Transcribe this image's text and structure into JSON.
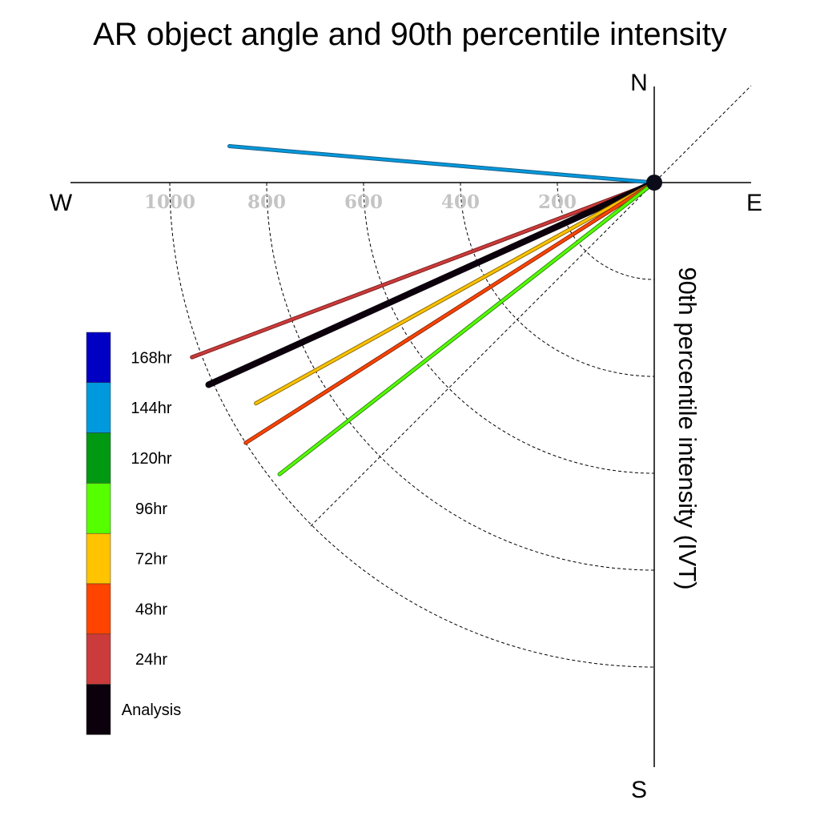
{
  "chart_data": {
    "type": "polar-vector",
    "title": "AR object angle and 90th percentile intensity",
    "ylabel": "90th percentile intensity (IVT)",
    "compass": {
      "north": "N",
      "south": "S",
      "east": "E",
      "west": "W"
    },
    "radial_ticks": [
      "200",
      "400",
      "600",
      "800",
      "1000"
    ],
    "radial_tick_values": [
      200,
      400,
      600,
      800,
      1000
    ],
    "rlim": [
      0,
      1000
    ],
    "grid": true,
    "legend_position": "left",
    "series": [
      {
        "name": "144hr",
        "color": "#0099dd",
        "edge": "#1b5f86",
        "intensity": 880,
        "direction_deg": 274.9
      },
      {
        "name": "24hr",
        "color": "#cc3b3b",
        "edge": "#7a1f1f",
        "intensity": 1020,
        "direction_deg": 249.3
      },
      {
        "name": "Analysis",
        "color": "#0b000b",
        "edge": "#000000",
        "intensity": 1010,
        "direction_deg": 245.6
      },
      {
        "name": "72hr",
        "color": "#ffc300",
        "edge": "#8a6b00",
        "intensity": 940,
        "direction_deg": 241.0
      },
      {
        "name": "48hr",
        "color": "#ff4400",
        "edge": "#8a2a10",
        "intensity": 1000,
        "direction_deg": 237.5
      },
      {
        "name": "96hr",
        "color": "#55ff00",
        "edge": "#2f8a10",
        "intensity": 980,
        "direction_deg": 232.1
      }
    ],
    "legend": [
      {
        "label": "168hr",
        "color": "#0000c4"
      },
      {
        "label": "144hr",
        "color": "#0099dd"
      },
      {
        "label": "120hr",
        "color": "#009911"
      },
      {
        "label": "96hr",
        "color": "#55ff00"
      },
      {
        "label": "72hr",
        "color": "#ffc300"
      },
      {
        "label": "48hr",
        "color": "#ff4400"
      },
      {
        "label": "24hr",
        "color": "#cc3b3b"
      },
      {
        "label": "Analysis",
        "color": "#0b000b"
      }
    ]
  }
}
